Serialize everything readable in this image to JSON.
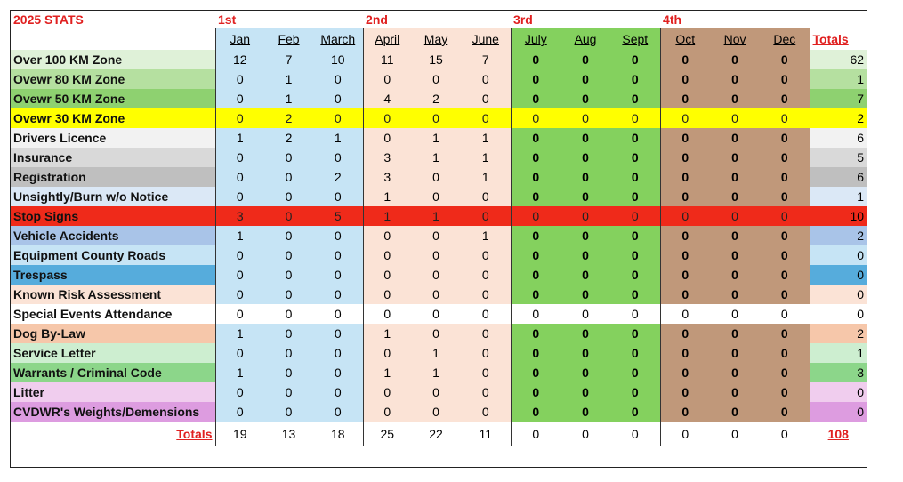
{
  "title": "2025 STATS",
  "quarters": [
    "1st",
    "2nd",
    "3rd",
    "4th"
  ],
  "months": [
    "Jan",
    "Feb",
    "March",
    "April",
    "May",
    "June",
    "July",
    "Aug",
    "Sept",
    "Oct",
    "Nov",
    "Dec"
  ],
  "totals_header": "Totals",
  "row_colors": {
    "over-100": "#dff1d8",
    "over-80": "#b5e0a0",
    "over-50": "#8ed170",
    "over-30": "#ffff00",
    "drivers": "#f2f2f2",
    "insurance": "#d9d9d9",
    "registration": "#bfbfbf",
    "unsightly": "#dbe8f6",
    "stop": "#ef2a1a",
    "accidents": "#a9c4e8",
    "equipment": "#c6e4f5",
    "trespass": "#56acdc",
    "known-risk": "#fbe3d6",
    "special": "#ffffff",
    "dog": "#f6c7aa",
    "service": "#cdeed0",
    "warrants": "#8cd68a",
    "litter": "#f0cdee",
    "cvdwr": "#dd9ce0"
  },
  "rows": [
    {
      "key": "over-100",
      "label": "Over 100 KM Zone",
      "values": [
        "12",
        "7",
        "10",
        "11",
        "15",
        "7",
        "0",
        "0",
        "0",
        "0",
        "0",
        "0"
      ],
      "total": "62"
    },
    {
      "key": "over-80",
      "label": "Ovewr 80 KM Zone",
      "values": [
        "0",
        "1",
        "0",
        "0",
        "0",
        "0",
        "0",
        "0",
        "0",
        "0",
        "0",
        "0"
      ],
      "total": "1"
    },
    {
      "key": "over-50",
      "label": "Ovewr 50 KM Zone",
      "values": [
        "0",
        "1",
        "0",
        "4",
        "2",
        "0",
        "0",
        "0",
        "0",
        "0",
        "0",
        "0"
      ],
      "total": "7"
    },
    {
      "key": "over-30",
      "label": "Ovewr 30 KM Zone",
      "values": [
        "0",
        "2",
        "0",
        "0",
        "0",
        "0",
        "0",
        "0",
        "0",
        "0",
        "0",
        "0"
      ],
      "total": "2"
    },
    {
      "key": "drivers",
      "label": "Drivers Licence",
      "values": [
        "1",
        "2",
        "1",
        "0",
        "1",
        "1",
        "0",
        "0",
        "0",
        "0",
        "0",
        "0"
      ],
      "total": "6"
    },
    {
      "key": "insurance",
      "label": "Insurance",
      "values": [
        "0",
        "0",
        "0",
        "3",
        "1",
        "1",
        "0",
        "0",
        "0",
        "0",
        "0",
        "0"
      ],
      "total": "5"
    },
    {
      "key": "registration",
      "label": "Registration",
      "values": [
        "0",
        "0",
        "2",
        "3",
        "0",
        "1",
        "0",
        "0",
        "0",
        "0",
        "0",
        "0"
      ],
      "total": "6"
    },
    {
      "key": "unsightly",
      "label": "Unsightly/Burn w/o Notice",
      "values": [
        "0",
        "0",
        "0",
        "1",
        "0",
        "0",
        "0",
        "0",
        "0",
        "0",
        "0",
        "0"
      ],
      "total": "1"
    },
    {
      "key": "stop",
      "label": "Stop Signs",
      "values": [
        "3",
        "0",
        "5",
        "1",
        "1",
        "0",
        "0",
        "0",
        "0",
        "0",
        "0",
        "0"
      ],
      "total": "10"
    },
    {
      "key": "accidents",
      "label": "Vehicle Accidents",
      "values": [
        "1",
        "0",
        "0",
        "0",
        "0",
        "1",
        "0",
        "0",
        "0",
        "0",
        "0",
        "0"
      ],
      "total": "2"
    },
    {
      "key": "equipment",
      "label": "Equipment County Roads",
      "values": [
        "0",
        "0",
        "0",
        "0",
        "0",
        "0",
        "0",
        "0",
        "0",
        "0",
        "0",
        "0"
      ],
      "total": "0"
    },
    {
      "key": "trespass",
      "label": "Trespass",
      "values": [
        "0",
        "0",
        "0",
        "0",
        "0",
        "0",
        "0",
        "0",
        "0",
        "0",
        "0",
        "0"
      ],
      "total": "0"
    },
    {
      "key": "known-risk",
      "label": "Known Risk Assessment",
      "values": [
        "0",
        "0",
        "0",
        "0",
        "0",
        "0",
        "0",
        "0",
        "0",
        "0",
        "0",
        "0"
      ],
      "total": "0"
    },
    {
      "key": "special",
      "label": "Special Events Attendance",
      "values": [
        "0",
        "0",
        "0",
        "0",
        "0",
        "0",
        "0",
        "0",
        "0",
        "0",
        "0",
        "0"
      ],
      "total": "0"
    },
    {
      "key": "dog",
      "label": "Dog By-Law",
      "values": [
        "1",
        "0",
        "0",
        "1",
        "0",
        "0",
        "0",
        "0",
        "0",
        "0",
        "0",
        "0"
      ],
      "total": "2"
    },
    {
      "key": "service",
      "label": "Service Letter",
      "values": [
        "0",
        "0",
        "0",
        "0",
        "1",
        "0",
        "0",
        "0",
        "0",
        "0",
        "0",
        "0"
      ],
      "total": "1"
    },
    {
      "key": "warrants",
      "label": "Warrants / Criminal Code",
      "values": [
        "1",
        "0",
        "0",
        "1",
        "1",
        "0",
        "0",
        "0",
        "0",
        "0",
        "0",
        "0"
      ],
      "total": "3"
    },
    {
      "key": "litter",
      "label": "Litter",
      "values": [
        "0",
        "0",
        "0",
        "0",
        "0",
        "0",
        "0",
        "0",
        "0",
        "0",
        "0",
        "0"
      ],
      "total": "0"
    },
    {
      "key": "cvdwr",
      "label": "CVDWR's Weights/Demensions",
      "values": [
        "0",
        "0",
        "0",
        "0",
        "0",
        "0",
        "0",
        "0",
        "0",
        "0",
        "0",
        "0"
      ],
      "total": "0"
    }
  ],
  "full_width_rows": [
    "over-30",
    "stop",
    "special"
  ],
  "totals_row": {
    "label": "Totals",
    "values": [
      "19",
      "13",
      "18",
      "25",
      "22",
      "11",
      "0",
      "0",
      "0",
      "0",
      "0",
      "0"
    ],
    "grand_total": "108"
  }
}
